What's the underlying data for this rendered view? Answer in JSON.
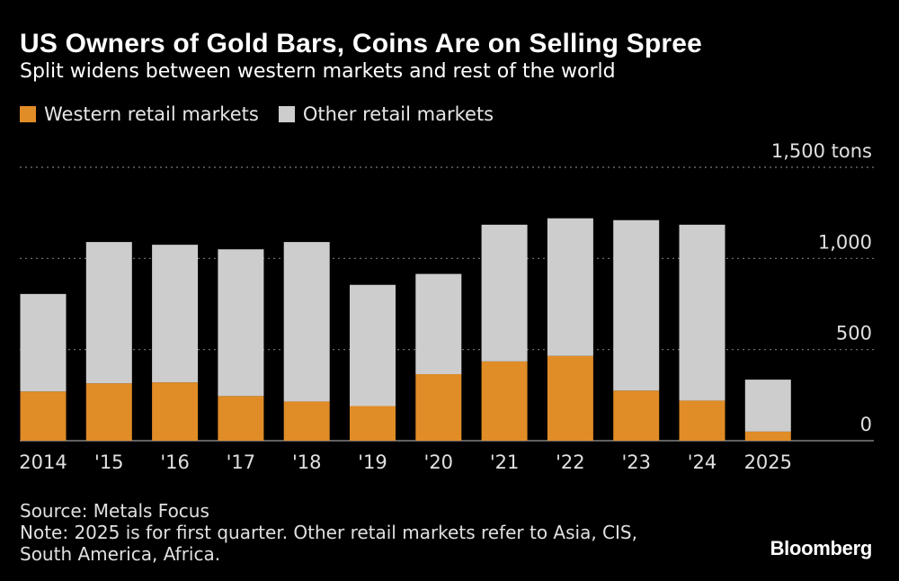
{
  "header": {
    "title": "US Owners of Gold Bars, Coins Are on Selling Spree",
    "subtitle": "Split widens between western markets and rest of the world"
  },
  "legend": [
    {
      "label": "Western retail markets",
      "color": "#e08c27"
    },
    {
      "label": "Other retail markets",
      "color": "#cdcdcd"
    }
  ],
  "footer": {
    "source": "Source: Metals Focus",
    "note_line1": "Note: 2025 is for first quarter. Other retail markets refer to Asia, CIS,",
    "note_line2": "South America, Africa.",
    "brand": "Bloomberg"
  },
  "chart_data": {
    "type": "bar",
    "stacked": true,
    "categories": [
      "2014",
      "'15",
      "'16",
      "'17",
      "'18",
      "'19",
      "'20",
      "'21",
      "'22",
      "'23",
      "'24",
      "2025"
    ],
    "series": [
      {
        "name": "Western retail markets",
        "color": "#e08c27",
        "values": [
          270,
          315,
          320,
          245,
          215,
          190,
          365,
          435,
          465,
          275,
          220,
          50
        ]
      },
      {
        "name": "Other retail markets",
        "color": "#cdcdcd",
        "values": [
          535,
          775,
          755,
          805,
          875,
          665,
          550,
          750,
          755,
          935,
          965,
          285
        ]
      }
    ],
    "ylim": [
      0,
      1500
    ],
    "yticks": [
      {
        "value": 0,
        "label": "0"
      },
      {
        "value": 500,
        "label": "500"
      },
      {
        "value": 1000,
        "label": "1,000"
      },
      {
        "value": 1500,
        "label": "1,500 tons"
      }
    ],
    "grid": true,
    "legend_position": "top-left"
  }
}
